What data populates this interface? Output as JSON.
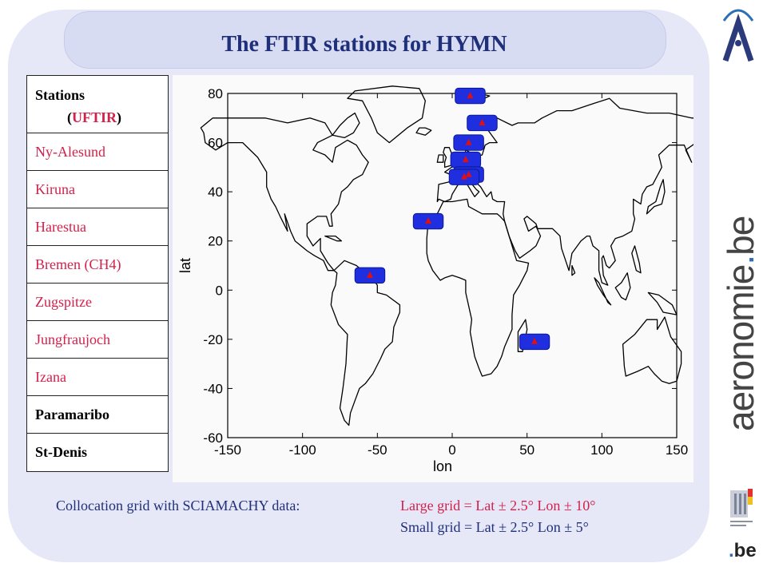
{
  "title": "The FTIR stations for HYMN",
  "stations": {
    "header_line1": "Stations",
    "header_open": "(",
    "header_red": "UFTIR",
    "header_close": ")",
    "rows": [
      {
        "name": "Ny-Alesund",
        "style": "red"
      },
      {
        "name": "Kiruna",
        "style": "red"
      },
      {
        "name": "Harestua",
        "style": "red"
      },
      {
        "name": "Bremen (CH4)",
        "style": "red"
      },
      {
        "name": "Zugspitze",
        "style": "red"
      },
      {
        "name": "Jungfraujoch",
        "style": "red"
      },
      {
        "name": "Izana",
        "style": "red"
      },
      {
        "name": "Paramaribo",
        "style": "dark"
      },
      {
        "name": "St-Denis",
        "style": "dark"
      }
    ]
  },
  "footer": {
    "line1_left": "Collocation grid with SCIAMACHY data:",
    "line1_right": "Large grid  = Lat ± 2.5° Lon ± 10°",
    "line2": "Small grid  = Lat ± 2.5° Lon ± 5°"
  },
  "branding": {
    "vertical_main": "aeronomie",
    "vertical_dot": ".",
    "vertical_tld": "be",
    "be_dot": ".",
    "be_text": "be"
  },
  "colors": {
    "title": "#1f2f7a",
    "station_red": "#d4204a",
    "grid_box": "#1f2fe0",
    "marker": "#e01010"
  },
  "chart_data": {
    "type": "scatter",
    "xlabel": "lon",
    "ylabel": "lat",
    "xlim": [
      -150,
      150
    ],
    "ylim": [
      -60,
      80
    ],
    "xticks": [
      -150,
      -100,
      -50,
      0,
      50,
      100,
      150
    ],
    "yticks": [
      80,
      60,
      40,
      20,
      0,
      -20,
      -40,
      -60
    ],
    "grid": false,
    "background_map": "world coastlines",
    "points": [
      {
        "name": "Ny-Alesund",
        "lon": 12,
        "lat": 79
      },
      {
        "name": "Kiruna",
        "lon": 20,
        "lat": 68
      },
      {
        "name": "Harestua",
        "lon": 11,
        "lat": 60
      },
      {
        "name": "Bremen (CH4)",
        "lon": 9,
        "lat": 53
      },
      {
        "name": "Zugspitze",
        "lon": 11,
        "lat": 47
      },
      {
        "name": "Jungfraujoch",
        "lon": 8,
        "lat": 46
      },
      {
        "name": "Izana",
        "lon": -16,
        "lat": 28
      },
      {
        "name": "Paramaribo",
        "lon": -55,
        "lat": 6
      },
      {
        "name": "St-Denis",
        "lon": 55,
        "lat": -21
      }
    ],
    "grid_box_half_width_lon": 10,
    "grid_box_half_height_lat": 2.5
  }
}
